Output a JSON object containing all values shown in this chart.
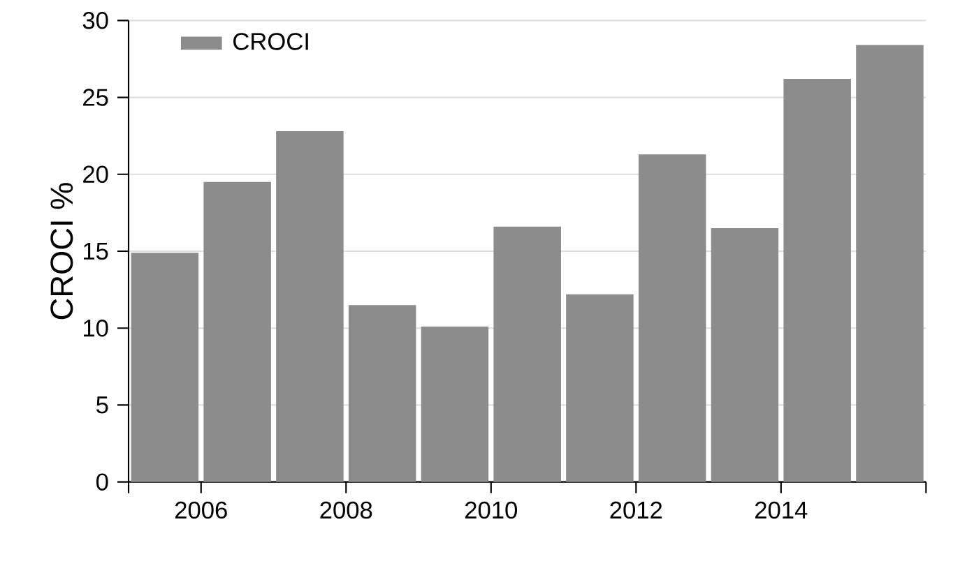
{
  "chart_data": {
    "type": "bar",
    "x": [
      2005.5,
      2006.5,
      2007.5,
      2008.5,
      2009.5,
      2010.5,
      2011.5,
      2012.5,
      2013.5,
      2014.5,
      2015.5
    ],
    "series": [
      {
        "name": "CROCI",
        "color": "#8c8c8c",
        "values": [
          14.9,
          19.5,
          22.8,
          11.5,
          10.1,
          16.6,
          12.2,
          21.3,
          16.5,
          26.2,
          28.4
        ]
      }
    ],
    "ylabel": "CROCI %",
    "xlim": [
      2005,
      2016
    ],
    "xticks": [
      {
        "value": 2005,
        "label": null
      },
      2006,
      2008,
      2010,
      2012,
      2014,
      {
        "value": 2016,
        "label": null
      }
    ],
    "ylim": [
      0,
      30
    ],
    "yticks": [
      0,
      5,
      10,
      15,
      20,
      25,
      30
    ],
    "grid": "y",
    "legend": "top left"
  }
}
